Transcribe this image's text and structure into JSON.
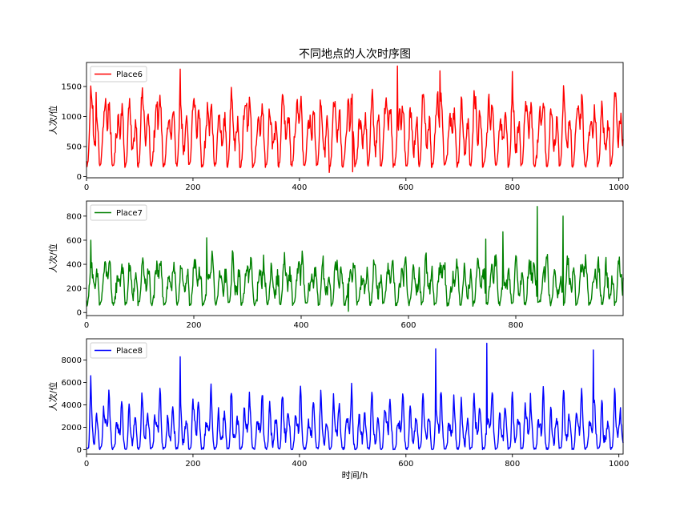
{
  "title": "不同地点的人次时序图",
  "chart_data": [
    {
      "type": "line",
      "title": "不同地点的人次时序图",
      "xlabel": "",
      "ylabel": "人次/位",
      "xlim": [
        0,
        1008
      ],
      "ylim": [
        -20,
        1900
      ],
      "xticks": [
        0,
        200,
        400,
        600,
        800,
        1000
      ],
      "yticks": [
        0,
        500,
        1000,
        1500
      ],
      "legend": "upper-left",
      "grid": false,
      "series": [
        {
          "name": "Place6",
          "color": "#ff0000",
          "profile": {
            "base": 180,
            "peaks": [
              [
                8,
                1000,
                2.2
              ],
              [
                12,
                800,
                1.8
              ],
              [
                18,
                880,
                2.2
              ],
              [
                21,
                500,
                1.8
              ]
            ],
            "noise": 140
          },
          "points": [
            [
              0,
              260
            ],
            [
              8,
              1510
            ],
            [
              12,
              1180
            ],
            [
              18,
              1400
            ],
            [
              24,
              220
            ],
            [
              176,
              1790
            ],
            [
              216,
              160
            ],
            [
              456,
              70
            ],
            [
              500,
              80
            ],
            [
              584,
              1840
            ],
            [
              664,
              1760
            ],
            [
              800,
              1750
            ],
            [
              1008,
              620
            ]
          ]
        }
      ]
    },
    {
      "type": "line",
      "xlabel": "",
      "ylabel": "人次/位",
      "xlim": [
        0,
        1000
      ],
      "ylim": [
        -25,
        925
      ],
      "xticks": [
        0,
        200,
        400,
        600,
        800
      ],
      "yticks": [
        0,
        200,
        400,
        600,
        800
      ],
      "legend": "upper-left",
      "grid": false,
      "series": [
        {
          "name": "Place7",
          "color": "#008000",
          "profile": {
            "base": 70,
            "peaks": [
              [
                8,
                300,
                2.2
              ],
              [
                12,
                220,
                2.0
              ],
              [
                18,
                300,
                2.2
              ],
              [
                21,
                150,
                1.8
              ]
            ],
            "noise": 70
          },
          "points": [
            [
              0,
              100
            ],
            [
              8,
              600
            ],
            [
              224,
              620
            ],
            [
              488,
              10
            ],
            [
              744,
              610
            ],
            [
              776,
              670
            ],
            [
              840,
              880
            ],
            [
              888,
              800
            ],
            [
              1000,
              290
            ]
          ]
        }
      ]
    },
    {
      "type": "line",
      "xlabel": "时间/h",
      "ylabel": "人次/位",
      "xlim": [
        0,
        1008
      ],
      "ylim": [
        -400,
        9900
      ],
      "xticks": [
        0,
        200,
        400,
        600,
        800,
        1000
      ],
      "yticks": [
        0,
        2000,
        4000,
        6000,
        8000
      ],
      "legend": "upper-left",
      "grid": false,
      "series": [
        {
          "name": "Place8",
          "color": "#0000ff",
          "profile": {
            "base": 80,
            "peaks": [
              [
                8,
                4200,
                1.6
              ],
              [
                12,
                1900,
                2.2
              ],
              [
                18,
                4400,
                1.6
              ],
              [
                21,
                1700,
                1.6
              ]
            ],
            "noise": 500
          },
          "points": [
            [
              0,
              100
            ],
            [
              8,
              6600
            ],
            [
              176,
              8300
            ],
            [
              656,
              9000
            ],
            [
              752,
              9500
            ],
            [
              952,
              8900
            ],
            [
              1008,
              600
            ]
          ]
        }
      ]
    }
  ]
}
